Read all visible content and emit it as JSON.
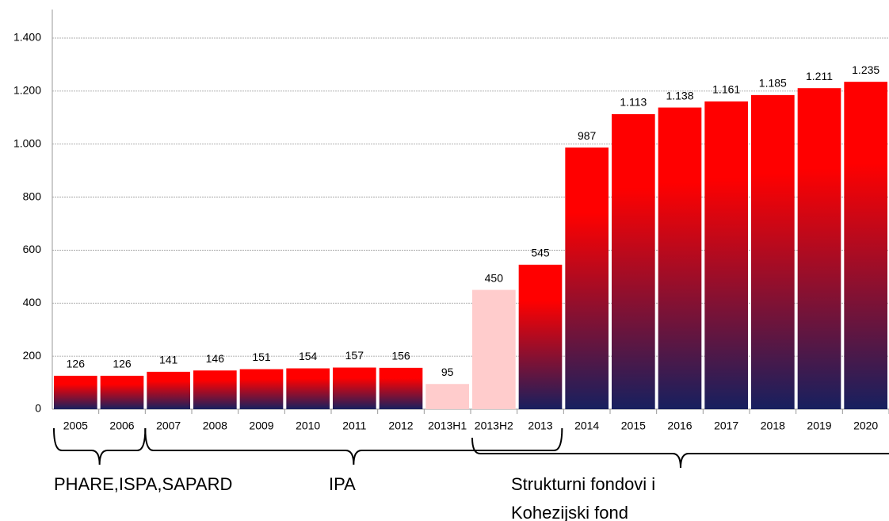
{
  "chart_data": {
    "type": "bar",
    "categories": [
      "2005",
      "2006",
      "2007",
      "2008",
      "2009",
      "2010",
      "2011",
      "2012",
      "2013H1",
      "2013H2",
      "2013",
      "2014",
      "2015",
      "2016",
      "2017",
      "2018",
      "2019",
      "2020"
    ],
    "values": [
      126,
      126,
      141,
      146,
      151,
      154,
      157,
      156,
      95,
      450,
      545,
      987,
      1113,
      1138,
      1161,
      1185,
      1211,
      1235
    ],
    "value_labels": [
      "126",
      "126",
      "141",
      "146",
      "151",
      "154",
      "157",
      "156",
      "95",
      "450",
      "545",
      "987",
      "1.113",
      "1.138",
      "1.161",
      "1.185",
      "1.211",
      "1.235"
    ],
    "colors": [
      "#ff0000",
      "#ff0000",
      "#ff0000",
      "#ff0000",
      "#ff0000",
      "#ff0000",
      "#ff0000",
      "#ff0000",
      "#ffcccc",
      "#ffcccc",
      "#ff0000",
      "#ff0000",
      "#ff0000",
      "#ff0000",
      "#ff0000",
      "#ff0000",
      "#ff0000",
      "#ff0000"
    ],
    "gradient_bottom_color": "#17205f",
    "ylim": [
      0,
      1400
    ],
    "yticks": [
      0,
      200,
      400,
      600,
      800,
      {
        "value": 1000,
        "label": "1.000"
      },
      {
        "value": 1200,
        "label": "1.200"
      },
      {
        "value": 1400,
        "label": "1.400"
      }
    ],
    "grid": true,
    "annotations": [
      {
        "lines": [
          "PHARE,ISPA,SAPARD"
        ]
      },
      {
        "lines": [
          "IPA"
        ]
      },
      {
        "lines": [
          "Strukturni fondovi i",
          "Kohezijski fond"
        ]
      }
    ]
  }
}
